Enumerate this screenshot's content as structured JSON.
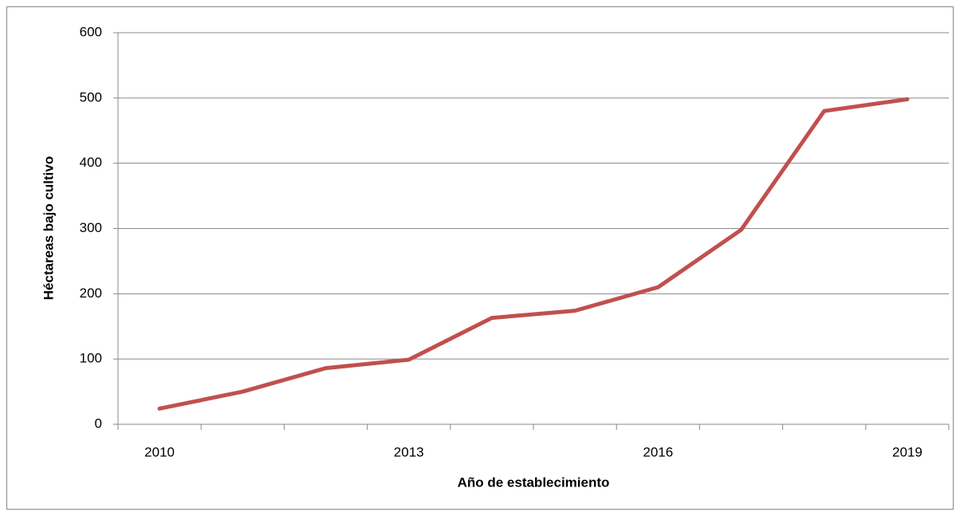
{
  "chart_data": {
    "type": "line",
    "x_label": "Año de establecimiento",
    "y_label": "Héctareas bajo cultivo",
    "categories": [
      "2010",
      null,
      null,
      "2013",
      null,
      null,
      "2016",
      null,
      null,
      "2019"
    ],
    "values": [
      24,
      50,
      86,
      99,
      163,
      174,
      210,
      298,
      480,
      498
    ],
    "color": "#c0504d",
    "ylim": [
      0,
      600
    ],
    "yticks": [
      0,
      100,
      200,
      300,
      400,
      500,
      600
    ],
    "grid": true
  }
}
